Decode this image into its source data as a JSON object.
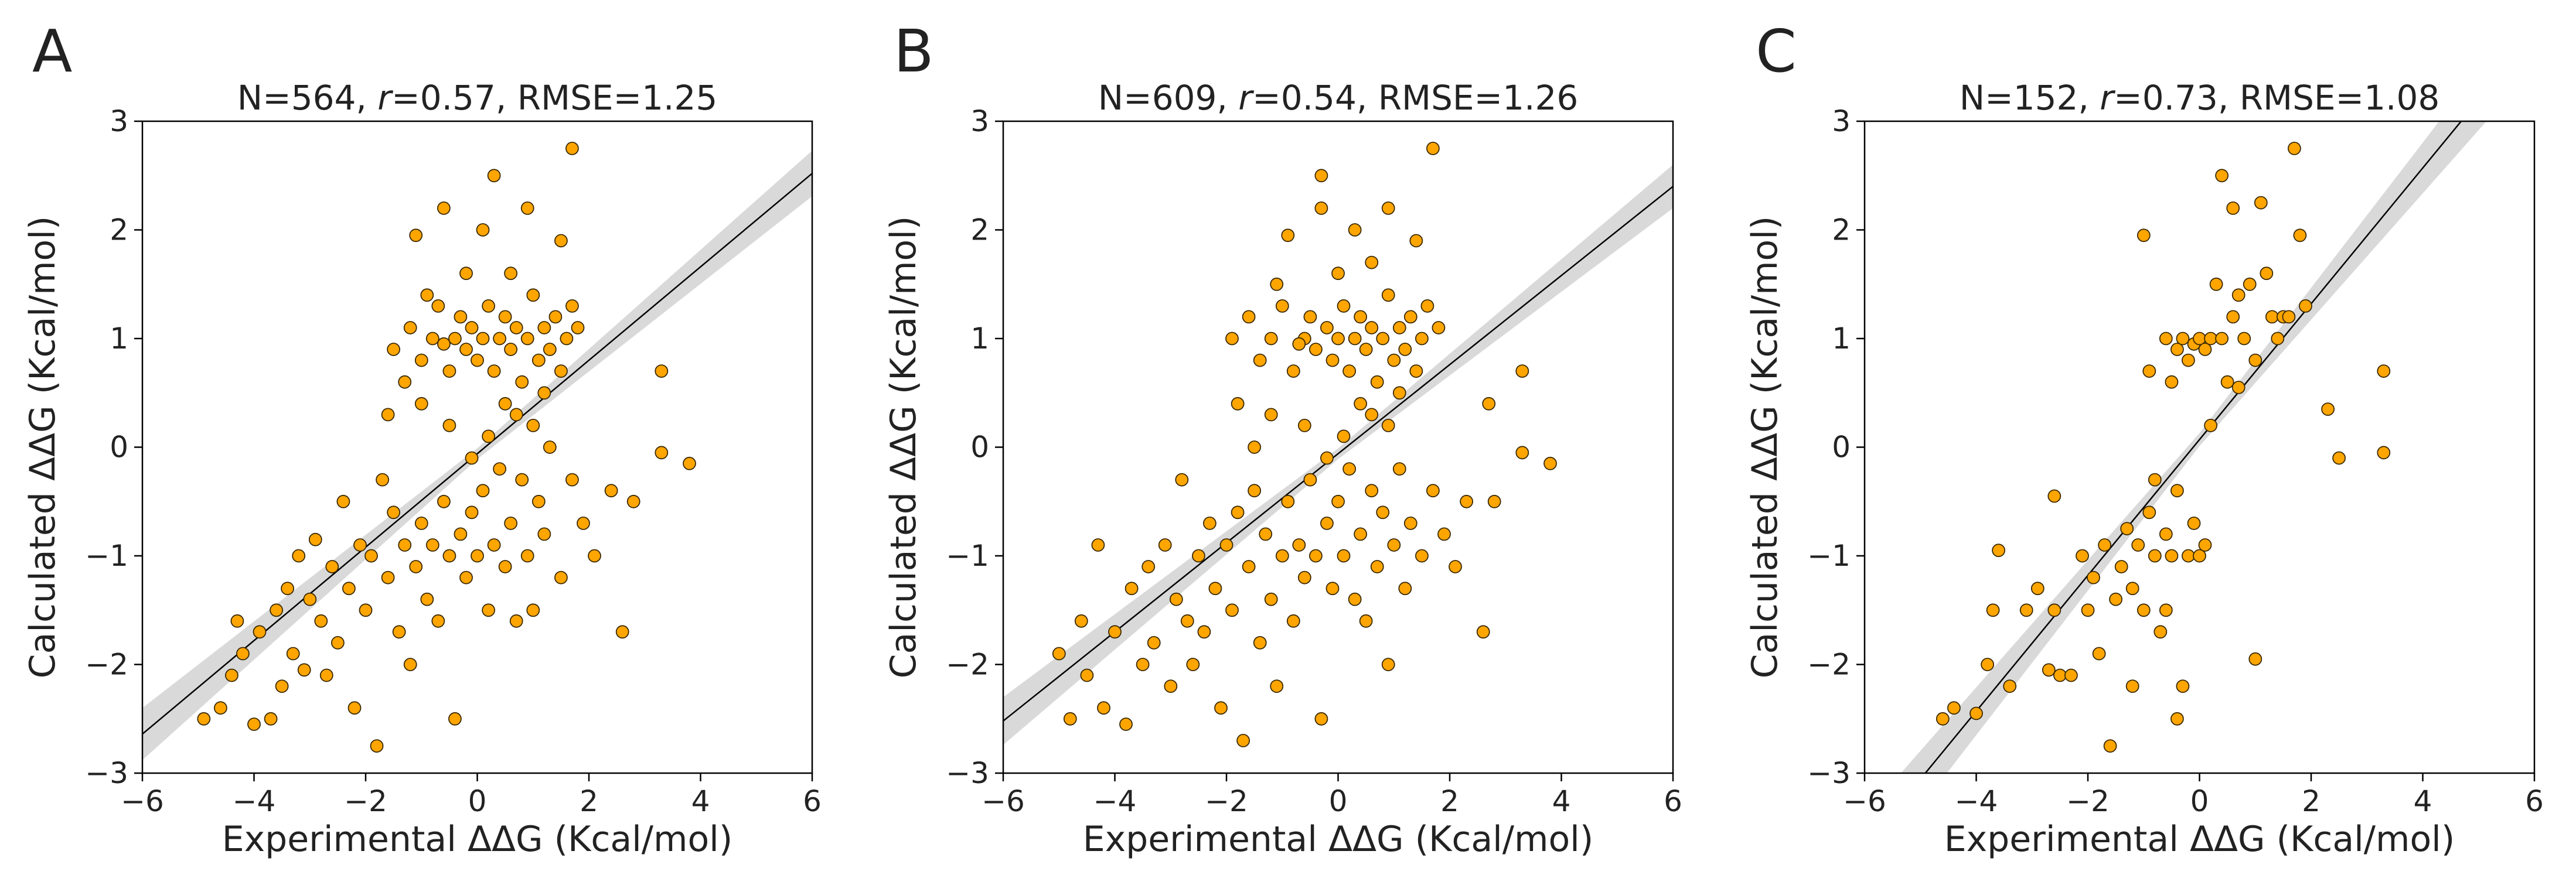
{
  "figure": {
    "axis_xlabel": "Experimental ΔΔG (Kcal/mol)",
    "axis_ylabel": "Calculated ΔΔG (Kcal/mol)"
  },
  "colors": {
    "point_fill": "#FFA500",
    "point_edge": "#3a2a00",
    "fit_line": "#000000",
    "band": "#d9d9d9",
    "axes": "#000000"
  },
  "chart_data": [
    {
      "type": "scatter",
      "panel": "A",
      "title_prefix": "N=564, ",
      "title_r": "r",
      "title_suffix": "=0.57, RMSE=1.25",
      "n": 564,
      "r": 0.57,
      "rmse": 1.25,
      "xlabel": "Experimental ΔΔG (Kcal/mol)",
      "ylabel": "Calculated ΔΔG (Kcal/mol)",
      "xlim": [
        -6,
        6
      ],
      "ylim": [
        -3,
        3
      ],
      "xticks": [
        -6,
        -4,
        -2,
        0,
        2,
        4,
        6
      ],
      "yticks": [
        -3,
        -2,
        -1,
        0,
        1,
        2,
        3
      ],
      "fit": {
        "slope": 0.43,
        "intercept": -0.06,
        "band_half_width": [
          0.24,
          0.05,
          0.21
        ]
      },
      "points": [
        [
          -4.9,
          -2.5
        ],
        [
          -4.6,
          -2.4
        ],
        [
          -4.4,
          -2.1
        ],
        [
          -4.3,
          -1.6
        ],
        [
          -4.2,
          -1.9
        ],
        [
          -4.0,
          -2.55
        ],
        [
          -3.9,
          -1.7
        ],
        [
          -3.7,
          -2.5
        ],
        [
          -3.6,
          -1.5
        ],
        [
          -3.5,
          -2.2
        ],
        [
          -3.4,
          -1.3
        ],
        [
          -3.3,
          -1.9
        ],
        [
          -3.2,
          -1.0
        ],
        [
          -3.1,
          -2.05
        ],
        [
          -3.0,
          -1.4
        ],
        [
          -2.9,
          -0.85
        ],
        [
          -2.8,
          -1.6
        ],
        [
          -2.7,
          -2.1
        ],
        [
          -2.6,
          -1.1
        ],
        [
          -2.5,
          -1.8
        ],
        [
          -2.4,
          -0.5
        ],
        [
          -2.3,
          -1.3
        ],
        [
          -2.2,
          -2.4
        ],
        [
          -2.1,
          -0.9
        ],
        [
          -2.0,
          -1.5
        ],
        [
          -1.9,
          -1.0
        ],
        [
          -1.8,
          -2.75
        ],
        [
          -1.7,
          -0.3
        ],
        [
          -1.6,
          -1.2
        ],
        [
          -1.5,
          -0.6
        ],
        [
          -1.4,
          -1.7
        ],
        [
          -1.3,
          -0.9
        ],
        [
          -1.2,
          -2.0
        ],
        [
          -1.1,
          -1.1
        ],
        [
          -1.0,
          -0.7
        ],
        [
          -0.9,
          -1.4
        ],
        [
          -0.8,
          -0.9
        ],
        [
          -0.7,
          -1.6
        ],
        [
          -0.6,
          -0.5
        ],
        [
          -0.5,
          -1.0
        ],
        [
          -0.4,
          -2.5
        ],
        [
          -0.3,
          -0.8
        ],
        [
          -0.2,
          -1.2
        ],
        [
          -0.1,
          -0.6
        ],
        [
          0.0,
          -1.0
        ],
        [
          0.1,
          -0.4
        ],
        [
          0.2,
          -1.5
        ],
        [
          0.3,
          -0.9
        ],
        [
          0.4,
          -0.2
        ],
        [
          0.5,
          -1.1
        ],
        [
          0.6,
          -0.7
        ],
        [
          0.7,
          -1.6
        ],
        [
          0.8,
          -0.3
        ],
        [
          0.9,
          -1.0
        ],
        [
          1.0,
          -1.5
        ],
        [
          1.1,
          -0.5
        ],
        [
          1.2,
          -0.8
        ],
        [
          1.3,
          0.0
        ],
        [
          1.5,
          -1.2
        ],
        [
          1.7,
          -0.3
        ],
        [
          1.9,
          -0.7
        ],
        [
          2.1,
          -1.0
        ],
        [
          2.4,
          -0.4
        ],
        [
          2.6,
          -1.7
        ],
        [
          2.8,
          -0.5
        ],
        [
          3.3,
          0.7
        ],
        [
          3.8,
          -0.15
        ],
        [
          3.3,
          -0.05
        ],
        [
          -1.5,
          0.9
        ],
        [
          -1.2,
          1.1
        ],
        [
          -1.0,
          0.8
        ],
        [
          -0.8,
          1.0
        ],
        [
          -0.7,
          1.3
        ],
        [
          -0.5,
          0.7
        ],
        [
          -0.4,
          1.0
        ],
        [
          -0.3,
          1.2
        ],
        [
          -0.2,
          0.9
        ],
        [
          -0.1,
          1.1
        ],
        [
          0.0,
          0.8
        ],
        [
          0.1,
          1.0
        ],
        [
          0.2,
          1.3
        ],
        [
          0.3,
          0.7
        ],
        [
          0.4,
          1.0
        ],
        [
          0.5,
          1.2
        ],
        [
          0.6,
          0.9
        ],
        [
          0.7,
          1.1
        ],
        [
          0.8,
          0.6
        ],
        [
          0.9,
          1.0
        ],
        [
          1.0,
          1.4
        ],
        [
          1.1,
          0.8
        ],
        [
          1.2,
          1.1
        ],
        [
          1.3,
          0.9
        ],
        [
          1.4,
          1.2
        ],
        [
          1.5,
          0.7
        ],
        [
          1.6,
          1.0
        ],
        [
          1.7,
          1.3
        ],
        [
          1.8,
          1.1
        ],
        [
          -0.6,
          0.95
        ],
        [
          -0.9,
          1.4
        ],
        [
          -1.3,
          0.6
        ],
        [
          0.3,
          2.5
        ],
        [
          1.7,
          2.75
        ],
        [
          0.9,
          2.2
        ],
        [
          0.1,
          2.0
        ],
        [
          -0.2,
          1.6
        ],
        [
          0.6,
          1.6
        ],
        [
          1.5,
          1.9
        ],
        [
          -0.6,
          2.2
        ],
        [
          -1.1,
          1.95
        ],
        [
          -1.6,
          0.3
        ],
        [
          -1.0,
          0.4
        ],
        [
          -0.5,
          0.2
        ],
        [
          0.2,
          0.1
        ],
        [
          0.7,
          0.3
        ],
        [
          1.2,
          0.5
        ],
        [
          -0.1,
          -0.1
        ],
        [
          0.5,
          0.4
        ],
        [
          1.0,
          0.2
        ]
      ]
    },
    {
      "type": "scatter",
      "panel": "B",
      "title_prefix": "N=609, ",
      "title_r": "r",
      "title_suffix": "=0.54, RMSE=1.26",
      "n": 609,
      "r": 0.54,
      "rmse": 1.26,
      "xlabel": "Experimental ΔΔG (Kcal/mol)",
      "ylabel": "Calculated ΔΔG (Kcal/mol)",
      "xlim": [
        -6,
        6
      ],
      "ylim": [
        -3,
        3
      ],
      "xticks": [
        -6,
        -4,
        -2,
        0,
        2,
        4,
        6
      ],
      "yticks": [
        -3,
        -2,
        -1,
        0,
        1,
        2,
        3
      ],
      "fit": {
        "slope": 0.41,
        "intercept": -0.06,
        "band_half_width": [
          0.22,
          0.05,
          0.2
        ]
      },
      "points": [
        [
          -5.0,
          -1.9
        ],
        [
          -4.8,
          -2.5
        ],
        [
          -4.6,
          -1.6
        ],
        [
          -4.5,
          -2.1
        ],
        [
          -4.3,
          -0.9
        ],
        [
          -4.2,
          -2.4
        ],
        [
          -4.0,
          -1.7
        ],
        [
          -3.8,
          -2.55
        ],
        [
          -3.7,
          -1.3
        ],
        [
          -3.5,
          -2.0
        ],
        [
          -3.4,
          -1.1
        ],
        [
          -3.3,
          -1.8
        ],
        [
          -3.1,
          -0.9
        ],
        [
          -3.0,
          -2.2
        ],
        [
          -2.9,
          -1.4
        ],
        [
          -2.8,
          -0.3
        ],
        [
          -2.7,
          -1.6
        ],
        [
          -2.6,
          -2.0
        ],
        [
          -2.5,
          -1.0
        ],
        [
          -2.4,
          -1.7
        ],
        [
          -2.3,
          -0.7
        ],
        [
          -2.2,
          -1.3
        ],
        [
          -2.1,
          -2.4
        ],
        [
          -2.0,
          -0.9
        ],
        [
          -1.9,
          -1.5
        ],
        [
          -1.8,
          -0.6
        ],
        [
          -1.7,
          -2.7
        ],
        [
          -1.6,
          -1.1
        ],
        [
          -1.5,
          -0.4
        ],
        [
          -1.4,
          -1.8
        ],
        [
          -1.3,
          -0.8
        ],
        [
          -1.2,
          -1.4
        ],
        [
          -1.1,
          -2.2
        ],
        [
          -1.0,
          -1.0
        ],
        [
          -0.9,
          -0.5
        ],
        [
          -0.8,
          -1.6
        ],
        [
          -0.7,
          -0.9
        ],
        [
          -0.6,
          -1.2
        ],
        [
          -0.5,
          -0.3
        ],
        [
          -0.4,
          -1.0
        ],
        [
          -0.3,
          -2.5
        ],
        [
          -0.2,
          -0.7
        ],
        [
          -0.1,
          -1.3
        ],
        [
          0.0,
          -0.5
        ],
        [
          0.1,
          -1.0
        ],
        [
          0.2,
          -0.2
        ],
        [
          0.3,
          -1.4
        ],
        [
          0.4,
          -0.8
        ],
        [
          0.5,
          -1.6
        ],
        [
          0.6,
          -0.4
        ],
        [
          0.7,
          -1.1
        ],
        [
          0.8,
          -0.6
        ],
        [
          0.9,
          -2.0
        ],
        [
          1.0,
          -0.9
        ],
        [
          1.1,
          -0.2
        ],
        [
          1.2,
          -1.3
        ],
        [
          1.3,
          -0.7
        ],
        [
          1.5,
          -1.0
        ],
        [
          1.7,
          -0.4
        ],
        [
          1.9,
          -0.8
        ],
        [
          2.1,
          -1.1
        ],
        [
          2.3,
          -0.5
        ],
        [
          2.6,
          -1.7
        ],
        [
          2.8,
          -0.5
        ],
        [
          3.3,
          0.7
        ],
        [
          3.8,
          -0.15
        ],
        [
          3.3,
          -0.05
        ],
        [
          2.7,
          0.4
        ],
        [
          -1.9,
          1.0
        ],
        [
          -1.6,
          1.2
        ],
        [
          -1.4,
          0.8
        ],
        [
          -1.2,
          1.0
        ],
        [
          -1.0,
          1.3
        ],
        [
          -0.8,
          0.7
        ],
        [
          -0.6,
          1.0
        ],
        [
          -0.5,
          1.2
        ],
        [
          -0.4,
          0.9
        ],
        [
          -0.2,
          1.1
        ],
        [
          -0.1,
          0.8
        ],
        [
          0.0,
          1.0
        ],
        [
          0.1,
          1.3
        ],
        [
          0.2,
          0.7
        ],
        [
          0.3,
          1.0
        ],
        [
          0.4,
          1.2
        ],
        [
          0.5,
          0.9
        ],
        [
          0.6,
          1.1
        ],
        [
          0.7,
          0.6
        ],
        [
          0.8,
          1.0
        ],
        [
          0.9,
          1.4
        ],
        [
          1.0,
          0.8
        ],
        [
          1.1,
          1.1
        ],
        [
          1.2,
          0.9
        ],
        [
          1.3,
          1.2
        ],
        [
          1.4,
          0.7
        ],
        [
          1.5,
          1.0
        ],
        [
          1.6,
          1.3
        ],
        [
          1.8,
          1.1
        ],
        [
          -0.7,
          0.95
        ],
        [
          -1.1,
          1.5
        ],
        [
          -0.3,
          2.5
        ],
        [
          1.7,
          2.75
        ],
        [
          0.9,
          2.2
        ],
        [
          0.3,
          2.0
        ],
        [
          -0.9,
          1.95
        ],
        [
          0.0,
          1.6
        ],
        [
          0.6,
          1.7
        ],
        [
          1.4,
          1.9
        ],
        [
          -0.3,
          2.2
        ],
        [
          -1.8,
          0.4
        ],
        [
          -1.2,
          0.3
        ],
        [
          -0.6,
          0.2
        ],
        [
          0.1,
          0.1
        ],
        [
          0.6,
          0.3
        ],
        [
          1.1,
          0.5
        ],
        [
          -0.2,
          -0.1
        ],
        [
          0.4,
          0.4
        ],
        [
          0.9,
          0.2
        ],
        [
          -1.5,
          0.0
        ]
      ]
    },
    {
      "type": "scatter",
      "panel": "C",
      "title_prefix": "N=152, ",
      "title_r": "r",
      "title_suffix": "=0.73, RMSE=1.08",
      "n": 152,
      "r": 0.73,
      "rmse": 1.08,
      "xlabel": "Experimental ΔΔG (Kcal/mol)",
      "ylabel": "Calculated ΔΔG (Kcal/mol)",
      "xlim": [
        -6,
        6
      ],
      "ylim": [
        -3,
        3
      ],
      "xticks": [
        -6,
        -4,
        -2,
        0,
        2,
        4,
        6
      ],
      "yticks": [
        -3,
        -2,
        -1,
        0,
        1,
        2,
        3
      ],
      "fit": {
        "slope": 0.625,
        "intercept": 0.07,
        "band_half_width": [
          0.3,
          0.06,
          0.32
        ]
      },
      "points": [
        [
          -4.6,
          -2.5
        ],
        [
          -4.4,
          -2.4
        ],
        [
          -4.0,
          -2.45
        ],
        [
          -3.8,
          -2.0
        ],
        [
          -3.7,
          -1.5
        ],
        [
          -3.6,
          -0.95
        ],
        [
          -3.4,
          -2.2
        ],
        [
          -3.1,
          -1.5
        ],
        [
          -2.9,
          -1.3
        ],
        [
          -2.7,
          -2.05
        ],
        [
          -2.6,
          -1.5
        ],
        [
          -2.5,
          -2.1
        ],
        [
          -2.3,
          -2.1
        ],
        [
          -2.1,
          -1.0
        ],
        [
          -2.0,
          -1.5
        ],
        [
          -1.9,
          -1.2
        ],
        [
          -1.8,
          -1.9
        ],
        [
          -1.7,
          -0.9
        ],
        [
          -1.6,
          -2.75
        ],
        [
          -1.5,
          -1.4
        ],
        [
          -1.4,
          -1.1
        ],
        [
          -1.3,
          -0.75
        ],
        [
          -1.2,
          -1.3
        ],
        [
          -1.1,
          -0.9
        ],
        [
          -1.0,
          -1.5
        ],
        [
          -0.9,
          -0.6
        ],
        [
          -0.8,
          -1.0
        ],
        [
          -0.7,
          -1.7
        ],
        [
          -0.6,
          -0.8
        ],
        [
          -0.5,
          -1.0
        ],
        [
          -0.4,
          -0.4
        ],
        [
          -0.3,
          -2.2
        ],
        [
          -0.2,
          -1.0
        ],
        [
          -0.1,
          -0.7
        ],
        [
          0.0,
          -1.0
        ],
        [
          0.1,
          -0.9
        ],
        [
          -0.4,
          -2.5
        ],
        [
          -0.6,
          -1.5
        ],
        [
          -1.2,
          -2.2
        ],
        [
          -2.6,
          -0.45
        ],
        [
          -1.0,
          1.95
        ],
        [
          -0.9,
          0.7
        ],
        [
          -0.6,
          1.0
        ],
        [
          -0.5,
          0.6
        ],
        [
          -0.4,
          0.9
        ],
        [
          -0.3,
          1.0
        ],
        [
          -0.2,
          0.8
        ],
        [
          -0.1,
          0.95
        ],
        [
          0.0,
          1.0
        ],
        [
          0.1,
          0.9
        ],
        [
          0.2,
          1.0
        ],
        [
          0.3,
          1.5
        ],
        [
          0.4,
          1.0
        ],
        [
          0.5,
          0.6
        ],
        [
          0.6,
          1.2
        ],
        [
          0.7,
          1.4
        ],
        [
          0.8,
          1.0
        ],
        [
          0.9,
          1.5
        ],
        [
          1.0,
          0.8
        ],
        [
          1.1,
          2.25
        ],
        [
          1.2,
          1.6
        ],
        [
          1.3,
          1.2
        ],
        [
          1.4,
          1.0
        ],
        [
          1.5,
          1.2
        ],
        [
          1.6,
          1.2
        ],
        [
          1.7,
          2.75
        ],
        [
          1.8,
          1.95
        ],
        [
          1.9,
          1.3
        ],
        [
          0.4,
          2.5
        ],
        [
          0.6,
          2.2
        ],
        [
          2.3,
          0.35
        ],
        [
          2.5,
          -0.1
        ],
        [
          3.3,
          0.7
        ],
        [
          3.3,
          -0.05
        ],
        [
          1.0,
          -1.95
        ],
        [
          -0.8,
          -0.3
        ],
        [
          0.2,
          0.2
        ],
        [
          0.7,
          0.55
        ]
      ]
    }
  ]
}
